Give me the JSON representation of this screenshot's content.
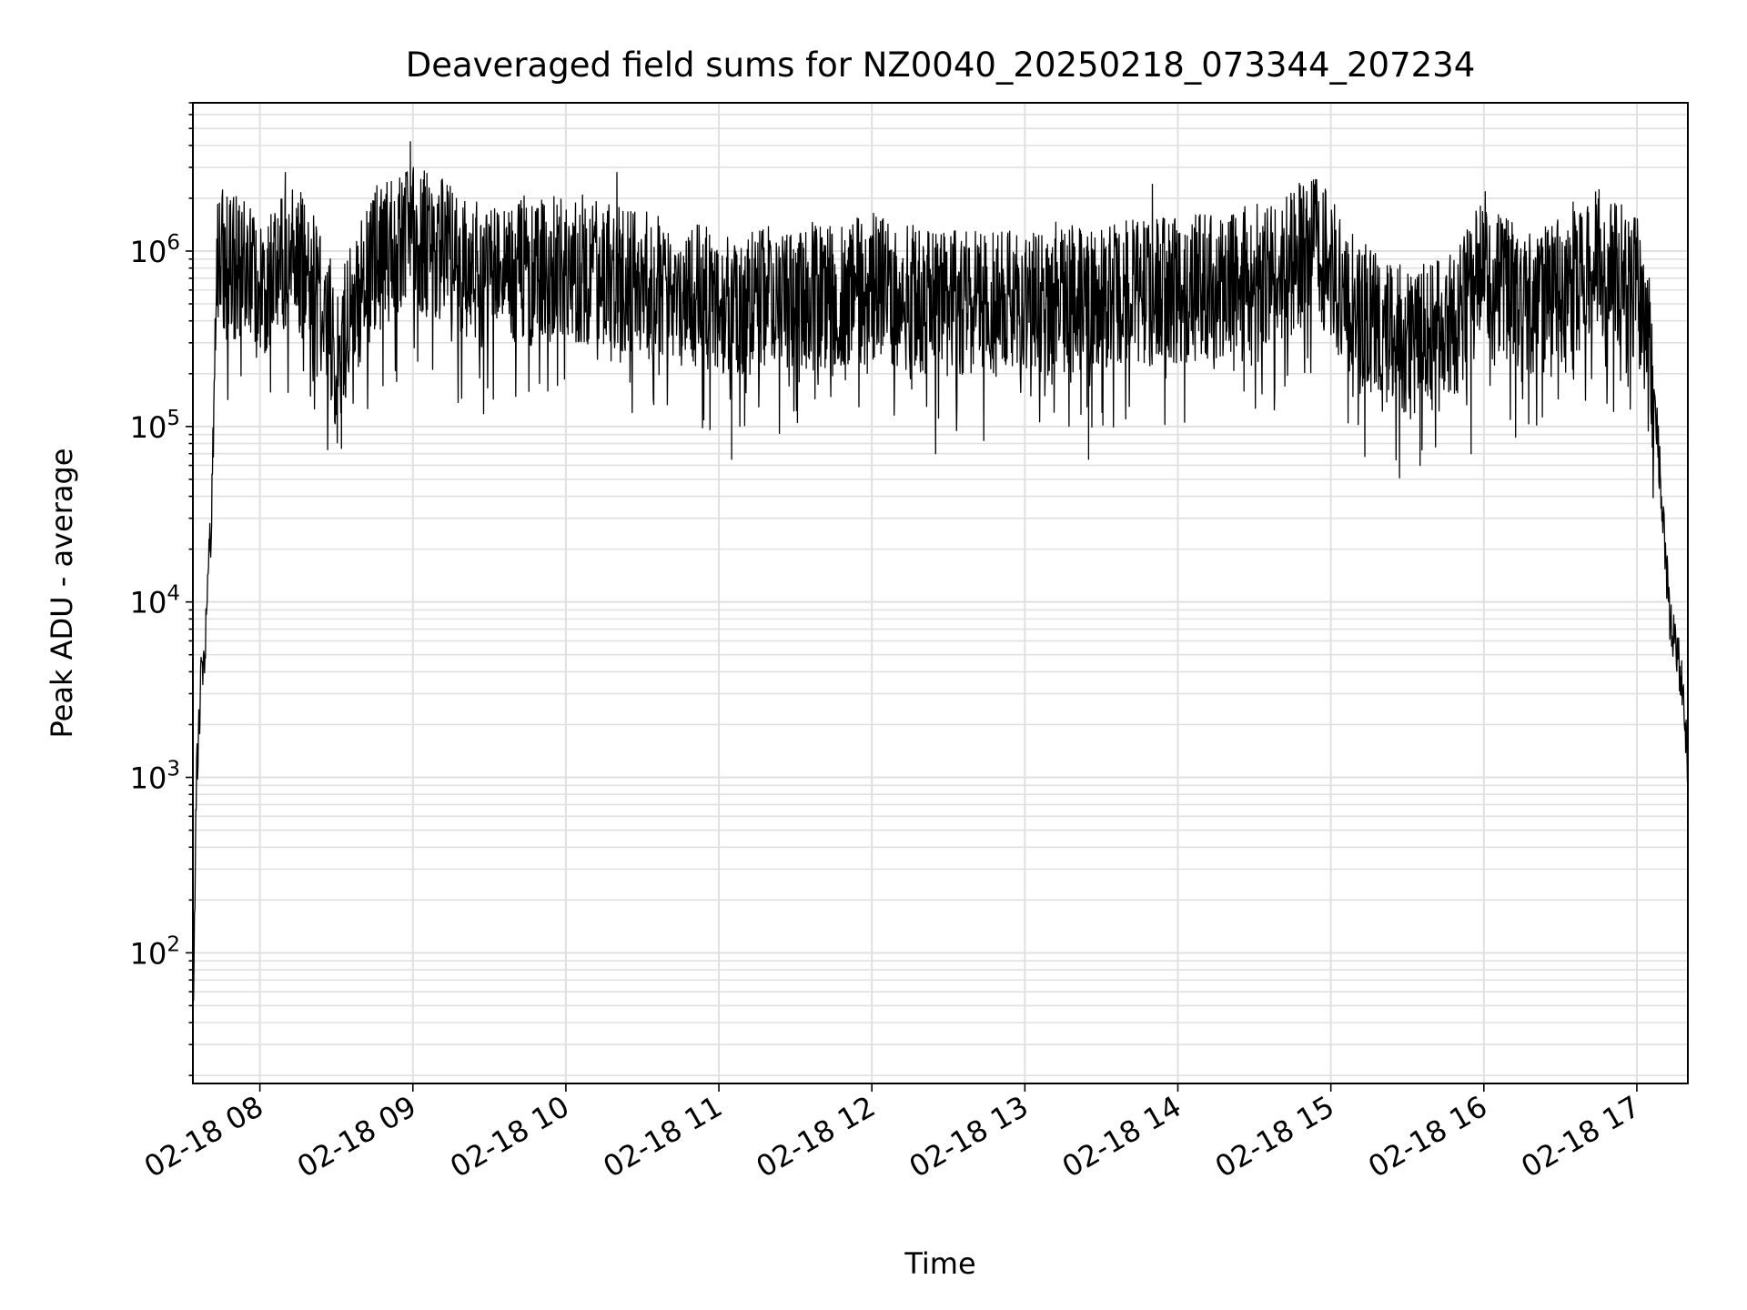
{
  "chart_data": {
    "type": "line",
    "title": "Deaveraged field sums for NZ0040_20250218_073344_207234",
    "xlabel": "Time",
    "ylabel": "Peak ADU - average",
    "y_scale": "log",
    "grid": true,
    "line_color": "#000000",
    "grid_color": "#e0e0e0",
    "xlim": [
      "02-18 07:33:44",
      "02-18 17:20:00"
    ],
    "ylim": [
      18,
      7000000
    ],
    "x_ticks": [
      {
        "value": "02-18 08:00",
        "label": "02-18 08"
      },
      {
        "value": "02-18 09:00",
        "label": "02-18 09"
      },
      {
        "value": "02-18 10:00",
        "label": "02-18 10"
      },
      {
        "value": "02-18 11:00",
        "label": "02-18 11"
      },
      {
        "value": "02-18 12:00",
        "label": "02-18 12"
      },
      {
        "value": "02-18 13:00",
        "label": "02-18 13"
      },
      {
        "value": "02-18 14:00",
        "label": "02-18 14"
      },
      {
        "value": "02-18 15:00",
        "label": "02-18 15"
      },
      {
        "value": "02-18 16:00",
        "label": "02-18 16"
      },
      {
        "value": "02-18 17:00",
        "label": "02-18 17"
      }
    ],
    "y_ticks": [
      {
        "value": 100,
        "base": "10",
        "exp": "2"
      },
      {
        "value": 1000,
        "base": "10",
        "exp": "3"
      },
      {
        "value": 10000,
        "base": "10",
        "exp": "4"
      },
      {
        "value": 100000,
        "base": "10",
        "exp": "5"
      },
      {
        "value": 1000000,
        "base": "10",
        "exp": "6"
      }
    ],
    "series": [
      {
        "points": [
          [
            "02-18 07:34",
            65
          ],
          [
            "02-18 07:35",
            800
          ],
          [
            "02-18 07:36",
            2100
          ],
          [
            "02-18 07:37",
            3500
          ],
          [
            "02-18 07:38",
            5000
          ],
          [
            "02-18 07:39",
            7000
          ],
          [
            "02-18 07:40",
            15000
          ],
          [
            "02-18 07:41",
            30000
          ],
          [
            "02-18 07:42",
            150000
          ],
          [
            "02-18 07:43",
            700000
          ],
          [
            "02-18 07:45",
            900000
          ],
          [
            "02-18 08:00",
            700000
          ],
          [
            "02-18 08:15",
            900000
          ],
          [
            "02-18 08:25",
            500000
          ],
          [
            "02-18 08:30",
            250000
          ],
          [
            "02-18 08:45",
            900000
          ],
          [
            "02-18 09:00",
            1200000
          ],
          [
            "02-18 09:15",
            900000
          ],
          [
            "02-18 09:30",
            700000
          ],
          [
            "02-18 10:00",
            800000
          ],
          [
            "02-18 10:30",
            650000
          ],
          [
            "02-18 11:00",
            500000
          ],
          [
            "02-18 11:30",
            550000
          ],
          [
            "02-18 12:00",
            600000
          ],
          [
            "02-18 12:30",
            500000
          ],
          [
            "02-18 13:00",
            500000
          ],
          [
            "02-18 13:30",
            550000
          ],
          [
            "02-18 14:00",
            600000
          ],
          [
            "02-18 14:30",
            700000
          ],
          [
            "02-18 14:55",
            1000000
          ],
          [
            "02-18 15:10",
            450000
          ],
          [
            "02-18 15:30",
            300000
          ],
          [
            "02-18 15:50",
            400000
          ],
          [
            "02-18 16:00",
            800000
          ],
          [
            "02-18 16:15",
            500000
          ],
          [
            "02-18 16:30",
            550000
          ],
          [
            "02-18 16:45",
            900000
          ],
          [
            "02-18 17:00",
            600000
          ],
          [
            "02-18 17:05",
            300000
          ],
          [
            "02-18 17:08",
            90000
          ],
          [
            "02-18 17:11",
            20000
          ],
          [
            "02-18 17:13",
            8000
          ],
          [
            "02-18 17:16",
            5000
          ],
          [
            "02-18 17:18",
            3000
          ],
          [
            "02-18 17:20",
            1200
          ]
        ],
        "spikes": [
          [
            "02-18 08:10",
            2800000
          ],
          [
            "02-18 08:59",
            4200000
          ],
          [
            "02-18 10:20",
            2800000
          ],
          [
            "02-18 13:50",
            2400000
          ],
          [
            "02-18 14:58",
            2200000
          ],
          [
            "02-18 16:35",
            1900000
          ],
          [
            "02-18 08:32",
            75000
          ],
          [
            "02-18 11:05",
            65000
          ],
          [
            "02-18 12:25",
            70000
          ],
          [
            "02-18 13:25",
            65000
          ],
          [
            "02-18 15:35",
            60000
          ],
          [
            "02-18 15:55",
            70000
          ]
        ]
      }
    ]
  }
}
